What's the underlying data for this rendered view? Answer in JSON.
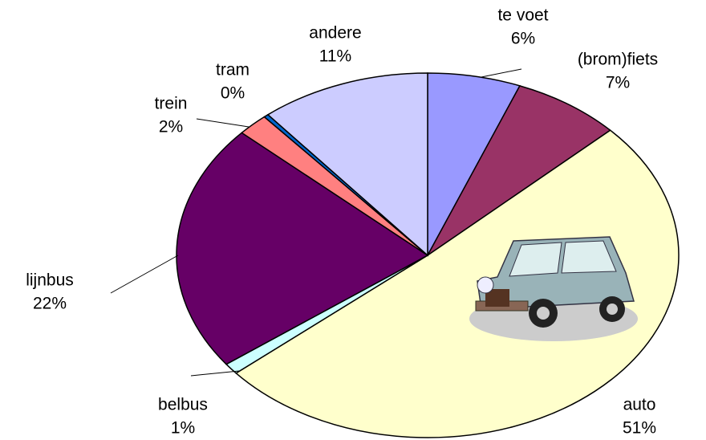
{
  "chart_data": {
    "type": "pie",
    "categories": [
      "te voet",
      "(brom)fiets",
      "auto",
      "belbus",
      "lijnbus",
      "trein",
      "tram",
      "andere"
    ],
    "values": [
      6,
      7,
      51,
      1,
      22,
      2,
      0.3,
      11
    ],
    "value_labels": [
      "6%",
      "7%",
      "51%",
      "1%",
      "22%",
      "2%",
      "0%",
      "11%"
    ],
    "colors": [
      "#9999ff",
      "#993366",
      "#ffffcc",
      "#ccffff",
      "#660066",
      "#ff8080",
      "#0066cc",
      "#ccccff"
    ]
  }
}
